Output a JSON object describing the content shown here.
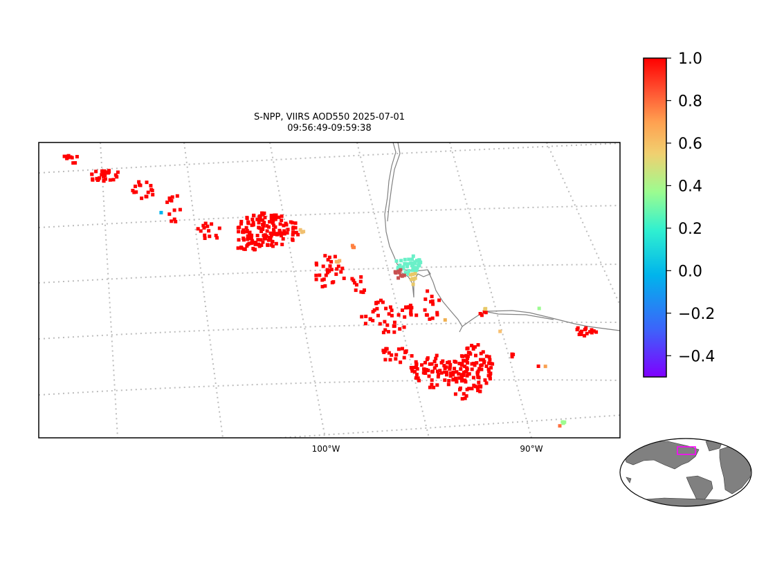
{
  "title": {
    "line1": "S-NPP, VIIRS AOD550 2025-07-01",
    "line2": "09:56:49-09:59:38"
  },
  "map": {
    "longitude_labels": [
      "100°W",
      "90°W"
    ],
    "gridlines": "dotted",
    "coastline_color": "#808080",
    "point_color_default": "#ff0000"
  },
  "colorbar": {
    "ticks": [
      "1.0",
      "0.8",
      "0.6",
      "0.4",
      "0.2",
      "0.0",
      "−0.2",
      "−0.4"
    ],
    "tick_values": [
      1.0,
      0.8,
      0.6,
      0.4,
      0.2,
      0.0,
      -0.2,
      -0.4
    ],
    "vmin": -0.5,
    "vmax": 1.0,
    "colormap": "rainbow",
    "stops": [
      "#7f00ff",
      "#3070f8",
      "#00b4ec",
      "#30f0d0",
      "#9cfc90",
      "#f0d070",
      "#ffa050",
      "#ff5030",
      "#ff0000"
    ]
  },
  "inset": {
    "land_color": "#808080",
    "ocean_color": "#ffffff",
    "highlight_color": "#ff00ff"
  }
}
